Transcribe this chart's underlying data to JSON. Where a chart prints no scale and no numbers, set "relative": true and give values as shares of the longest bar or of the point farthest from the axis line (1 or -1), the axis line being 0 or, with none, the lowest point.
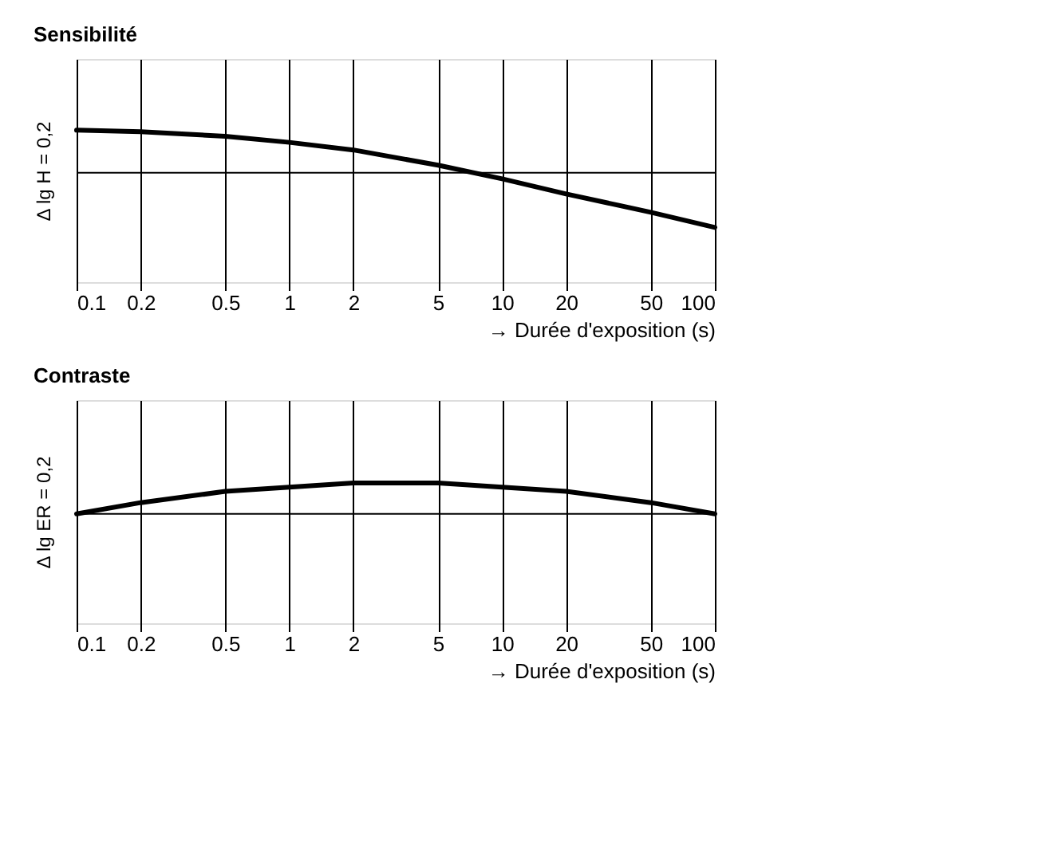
{
  "chart_data": [
    {
      "type": "line",
      "title": "Sensibilité",
      "xlabel": "→ Durée d'exposition (s)",
      "ylabel": "Δ lg H = 0,2",
      "relative": true,
      "log": "x",
      "grid": "x",
      "xlim": [
        0.1,
        100
      ],
      "xticks": [
        0.1,
        0.2,
        0.5,
        1,
        2,
        5,
        10,
        20,
        50,
        100
      ],
      "line_style": "solid",
      "marker": "none",
      "ref_lines": [
        {
          "axis": "y",
          "value": 0.72,
          "color": "#000000"
        }
      ],
      "series": [
        {
          "color": "#000000",
          "x": [
            0.1,
            0.2,
            0.5,
            1,
            2,
            5,
            10,
            20,
            50,
            100
          ],
          "values": [
            1,
            0.99,
            0.96,
            0.92,
            0.87,
            0.77,
            0.68,
            0.58,
            0.46,
            0.36
          ]
        }
      ]
    },
    {
      "type": "line",
      "title": "Contraste",
      "xlabel": "→ Durée d'exposition (s)",
      "ylabel": "Δ lg ER = 0,2",
      "relative": true,
      "log": "x",
      "grid": "x",
      "xlim": [
        0.1,
        100
      ],
      "xticks": [
        0.1,
        0.2,
        0.5,
        1,
        2,
        5,
        10,
        20,
        50,
        100
      ],
      "line_style": "solid",
      "marker": "none",
      "ref_lines": [
        {
          "axis": "y",
          "value": 0.78,
          "color": "#000000"
        }
      ],
      "series": [
        {
          "color": "#000000",
          "x": [
            0.1,
            0.2,
            0.5,
            1,
            2,
            5,
            10,
            20,
            50,
            100
          ],
          "values": [
            0.78,
            0.86,
            0.94,
            0.97,
            1,
            1,
            0.97,
            0.94,
            0.86,
            0.78
          ]
        }
      ]
    }
  ]
}
